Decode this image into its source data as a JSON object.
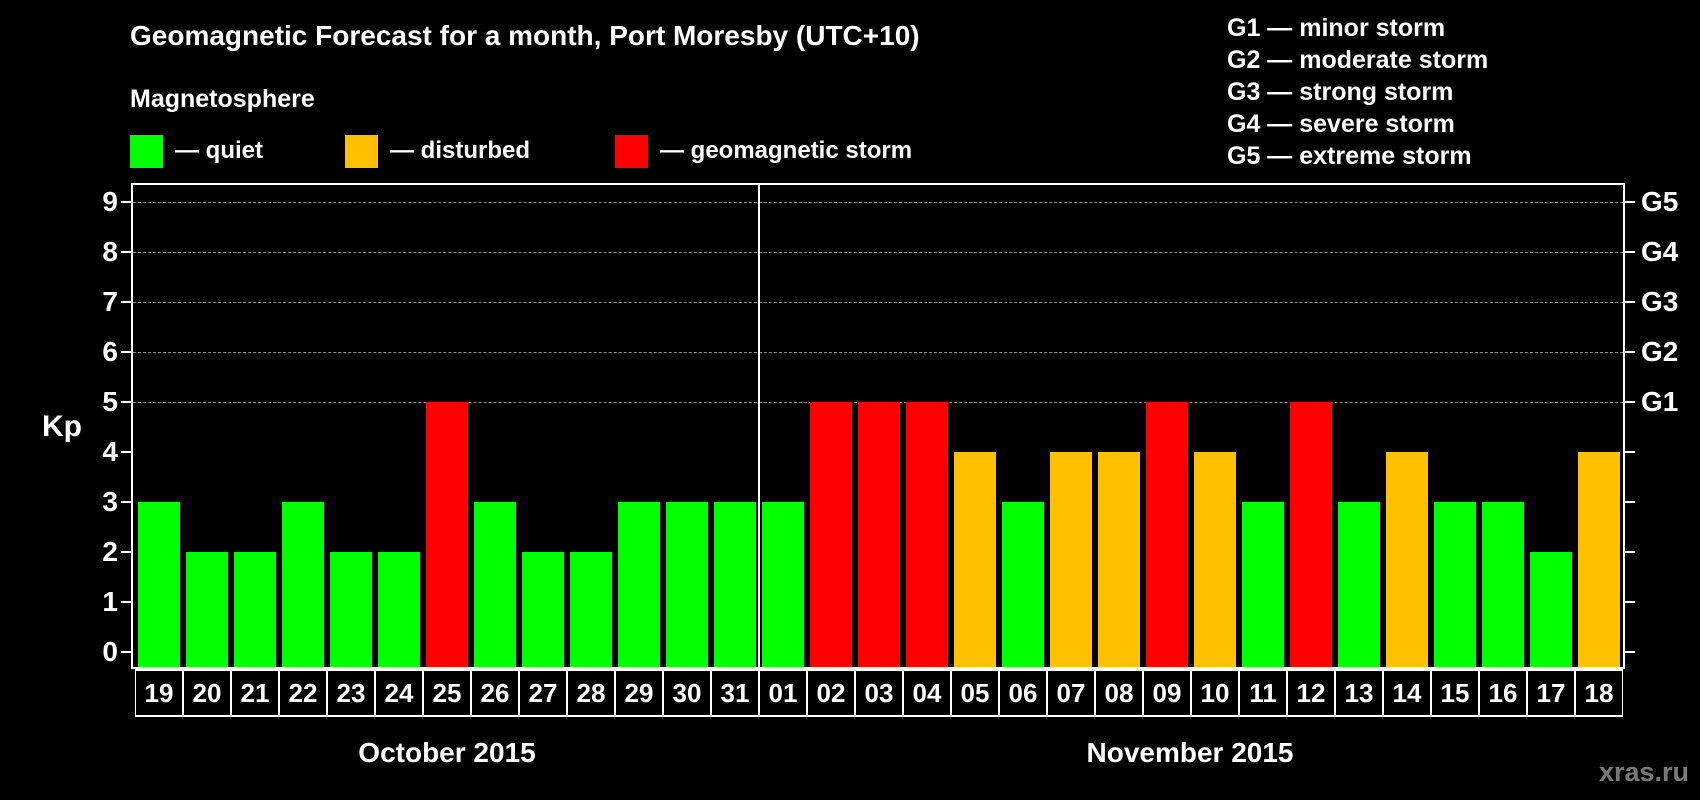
{
  "header": {
    "title": "Geomagnetic Forecast for a month, Port Moresby (UTC+10)",
    "subtitle": "Magnetosphere"
  },
  "legend": [
    {
      "label": "— quiet",
      "color": "#00ff00"
    },
    {
      "label": "— disturbed",
      "color": "#ffc000"
    },
    {
      "label": "— geomagnetic storm",
      "color": "#ff0000"
    }
  ],
  "storm_scale": [
    "G1 — minor storm",
    "G2 — moderate storm",
    "G3 — strong storm",
    "G4 — severe storm",
    "G5 — extreme storm"
  ],
  "axis": {
    "ylabel": "Kp",
    "yticks": [
      "0",
      "1",
      "2",
      "3",
      "4",
      "5",
      "6",
      "7",
      "8",
      "9"
    ],
    "right_labels": {
      "5": "G1",
      "6": "G2",
      "7": "G3",
      "8": "G4",
      "9": "G5"
    }
  },
  "months": [
    "October 2015",
    "November 2015"
  ],
  "watermark": "xras.ru",
  "chart_data": {
    "type": "bar",
    "title": "Geomagnetic Forecast for a month, Port Moresby (UTC+10)",
    "xlabel": "",
    "ylabel": "Kp",
    "ylim": [
      0,
      9
    ],
    "grid": true,
    "legend_position": "top",
    "categories": [
      "19",
      "20",
      "21",
      "22",
      "23",
      "24",
      "25",
      "26",
      "27",
      "28",
      "29",
      "30",
      "31",
      "01",
      "02",
      "03",
      "04",
      "05",
      "06",
      "07",
      "08",
      "09",
      "10",
      "11",
      "12",
      "13",
      "14",
      "15",
      "16",
      "17",
      "18"
    ],
    "month_groups": [
      {
        "label": "October 2015",
        "from": "19",
        "to": "31"
      },
      {
        "label": "November 2015",
        "from": "01",
        "to": "18"
      }
    ],
    "values": [
      3,
      2,
      2,
      3,
      2,
      2,
      5,
      3,
      2,
      2,
      3,
      3,
      3,
      3,
      5,
      5,
      5,
      4,
      3,
      4,
      4,
      5,
      4,
      3,
      5,
      3,
      4,
      3,
      3,
      2,
      4
    ],
    "status": [
      "quiet",
      "quiet",
      "quiet",
      "quiet",
      "quiet",
      "quiet",
      "storm",
      "quiet",
      "quiet",
      "quiet",
      "quiet",
      "quiet",
      "quiet",
      "quiet",
      "storm",
      "storm",
      "storm",
      "disturbed",
      "quiet",
      "disturbed",
      "disturbed",
      "storm",
      "disturbed",
      "quiet",
      "storm",
      "quiet",
      "disturbed",
      "quiet",
      "quiet",
      "quiet",
      "disturbed"
    ],
    "colors": {
      "quiet": "#00ff00",
      "disturbed": "#ffc000",
      "storm": "#ff0000"
    },
    "right_axis": {
      "5": "G1",
      "6": "G2",
      "7": "G3",
      "8": "G4",
      "9": "G5"
    }
  }
}
